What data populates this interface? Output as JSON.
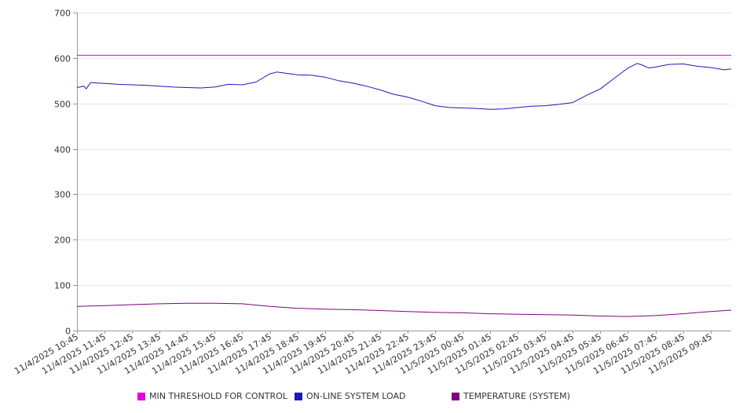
{
  "chart_data": {
    "type": "line",
    "title": "",
    "xlabel": "",
    "ylabel": "",
    "ylim": [
      0,
      700
    ],
    "yticks": [
      0,
      100,
      200,
      300,
      400,
      500,
      600,
      700
    ],
    "grid": true,
    "legend_position": "bottom",
    "x_start": "11/4/2025 10:45",
    "x_end": "11/5/2025 10:30",
    "x_tick_labels": [
      "11/4/2025 10:45",
      "11/4/2025 11:45",
      "11/4/2025 12:45",
      "11/4/2025 13:45",
      "11/4/2025 14:45",
      "11/4/2025 15:45",
      "11/4/2025 16:45",
      "11/4/2025 17:45",
      "11/4/2025 18:45",
      "11/4/2025 19:45",
      "11/4/2025 20:45",
      "11/4/2025 21:45",
      "11/4/2025 22:45",
      "11/4/2025 23:45",
      "11/5/2025 00:45",
      "11/5/2025 01:45",
      "11/5/2025 02:45",
      "11/5/2025 03:45",
      "11/5/2025 04:45",
      "11/5/2025 05:45",
      "11/5/2025 06:45",
      "11/5/2025 07:45",
      "11/5/2025 08:45",
      "11/5/2025 09:45"
    ],
    "series": [
      {
        "name": "MIN THRESHOLD FOR CONTROL",
        "color": "#e000e0",
        "points": [
          [
            "11/4/2025 10:45",
            606
          ],
          [
            "11/5/2025 10:30",
            606
          ]
        ]
      },
      {
        "name": "ON-LINE SYSTEM LOAD",
        "color": "#1a1ab8",
        "points": [
          [
            "11/4/2025 10:45",
            535
          ],
          [
            "11/4/2025 11:00",
            538
          ],
          [
            "11/4/2025 11:05",
            532
          ],
          [
            "11/4/2025 11:15",
            546
          ],
          [
            "11/4/2025 11:45",
            544
          ],
          [
            "11/4/2025 12:15",
            542
          ],
          [
            "11/4/2025 12:45",
            541
          ],
          [
            "11/4/2025 13:15",
            540
          ],
          [
            "11/4/2025 13:45",
            538
          ],
          [
            "11/4/2025 14:15",
            536
          ],
          [
            "11/4/2025 14:45",
            535
          ],
          [
            "11/4/2025 15:15",
            534
          ],
          [
            "11/4/2025 15:45",
            536
          ],
          [
            "11/4/2025 16:15",
            542
          ],
          [
            "11/4/2025 16:45",
            541
          ],
          [
            "11/4/2025 17:15",
            547
          ],
          [
            "11/4/2025 17:45",
            565
          ],
          [
            "11/4/2025 18:00",
            569
          ],
          [
            "11/4/2025 18:15",
            567
          ],
          [
            "11/4/2025 18:45",
            563
          ],
          [
            "11/4/2025 19:15",
            562
          ],
          [
            "11/4/2025 19:45",
            558
          ],
          [
            "11/4/2025 20:15",
            550
          ],
          [
            "11/4/2025 20:45",
            545
          ],
          [
            "11/4/2025 21:15",
            538
          ],
          [
            "11/4/2025 21:45",
            530
          ],
          [
            "11/4/2025 22:15",
            520
          ],
          [
            "11/4/2025 22:45",
            514
          ],
          [
            "11/4/2025 23:15",
            505
          ],
          [
            "11/4/2025 23:45",
            495
          ],
          [
            "11/5/2025 00:15",
            491
          ],
          [
            "11/5/2025 00:45",
            490
          ],
          [
            "11/5/2025 01:15",
            489
          ],
          [
            "11/5/2025 01:45",
            487
          ],
          [
            "11/5/2025 02:15",
            488
          ],
          [
            "11/5/2025 02:45",
            491
          ],
          [
            "11/5/2025 03:15",
            494
          ],
          [
            "11/5/2025 03:45",
            495
          ],
          [
            "11/5/2025 04:15",
            498
          ],
          [
            "11/5/2025 04:45",
            502
          ],
          [
            "11/5/2025 05:15",
            518
          ],
          [
            "11/5/2025 05:45",
            532
          ],
          [
            "11/5/2025 06:15",
            555
          ],
          [
            "11/5/2025 06:45",
            578
          ],
          [
            "11/5/2025 07:05",
            588
          ],
          [
            "11/5/2025 07:15",
            585
          ],
          [
            "11/5/2025 07:30",
            578
          ],
          [
            "11/5/2025 07:45",
            580
          ],
          [
            "11/5/2025 08:15",
            586
          ],
          [
            "11/5/2025 08:45",
            587
          ],
          [
            "11/5/2025 09:15",
            582
          ],
          [
            "11/5/2025 09:45",
            579
          ],
          [
            "11/5/2025 10:15",
            574
          ],
          [
            "11/5/2025 10:30",
            576
          ]
        ]
      },
      {
        "name": "TEMPERATURE (SYSTEM)",
        "color": "#800080",
        "points": [
          [
            "11/4/2025 10:45",
            53
          ],
          [
            "11/4/2025 11:45",
            55
          ],
          [
            "11/4/2025 12:45",
            57
          ],
          [
            "11/4/2025 13:45",
            59
          ],
          [
            "11/4/2025 14:45",
            60
          ],
          [
            "11/4/2025 15:45",
            60
          ],
          [
            "11/4/2025 16:45",
            59
          ],
          [
            "11/4/2025 17:45",
            53
          ],
          [
            "11/4/2025 18:45",
            49
          ],
          [
            "11/4/2025 19:45",
            47
          ],
          [
            "11/4/2025 20:45",
            46
          ],
          [
            "11/4/2025 21:45",
            44
          ],
          [
            "11/4/2025 22:45",
            42
          ],
          [
            "11/4/2025 23:45",
            40
          ],
          [
            "11/5/2025 00:45",
            39
          ],
          [
            "11/5/2025 01:45",
            37
          ],
          [
            "11/5/2025 02:45",
            36
          ],
          [
            "11/5/2025 03:45",
            35
          ],
          [
            "11/5/2025 04:45",
            34
          ],
          [
            "11/5/2025 05:45",
            32
          ],
          [
            "11/5/2025 06:45",
            31
          ],
          [
            "11/5/2025 07:45",
            33
          ],
          [
            "11/5/2025 08:45",
            37
          ],
          [
            "11/5/2025 09:45",
            42
          ],
          [
            "11/5/2025 10:30",
            45
          ]
        ]
      }
    ]
  }
}
